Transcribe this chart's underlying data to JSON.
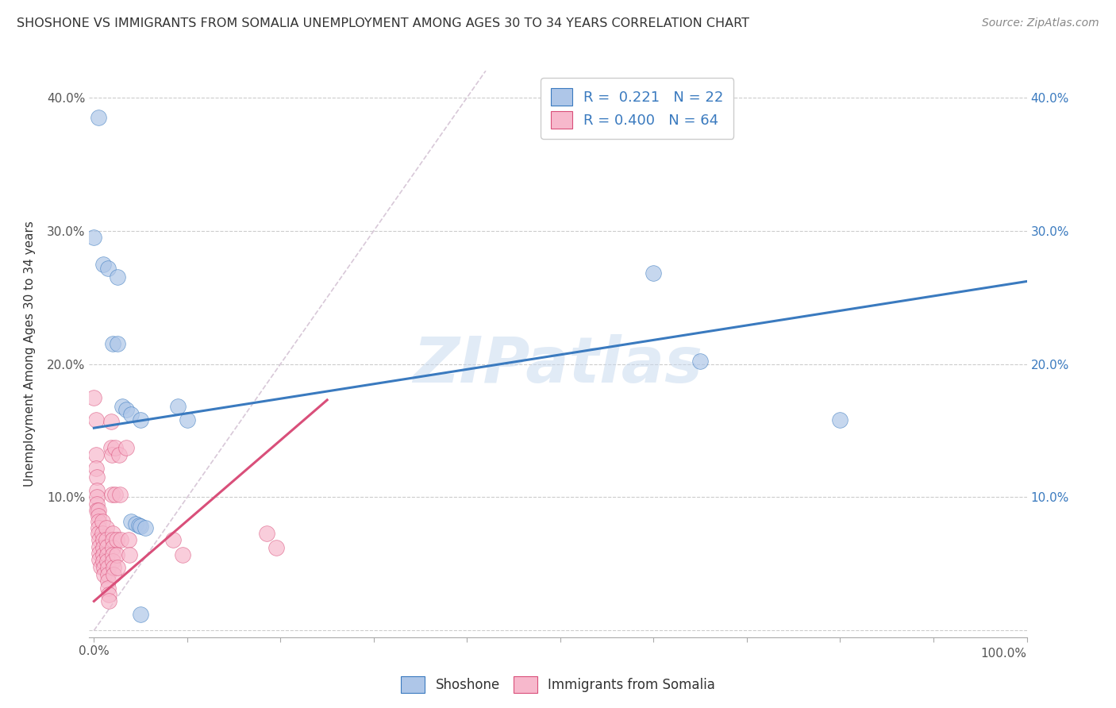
{
  "title": "SHOSHONE VS IMMIGRANTS FROM SOMALIA UNEMPLOYMENT AMONG AGES 30 TO 34 YEARS CORRELATION CHART",
  "source": "Source: ZipAtlas.com",
  "ylabel": "Unemployment Among Ages 30 to 34 years",
  "xlim": [
    -0.005,
    1.0
  ],
  "ylim": [
    -0.005,
    0.42
  ],
  "xticks": [
    0.0,
    0.1,
    0.2,
    0.3,
    0.4,
    0.5,
    0.6,
    0.7,
    0.8,
    0.9,
    1.0
  ],
  "xticklabels_left": [
    "0.0%",
    "",
    "",
    "",
    "",
    "",
    "",
    "",
    "",
    "",
    ""
  ],
  "xticklabels_right": [
    "",
    "",
    "",
    "",
    "",
    "",
    "",
    "",
    "",
    "",
    "100.0%"
  ],
  "yticks": [
    0.0,
    0.1,
    0.2,
    0.3,
    0.4
  ],
  "yticklabels_left": [
    "",
    "10.0%",
    "20.0%",
    "30.0%",
    "40.0%"
  ],
  "yticklabels_right": [
    "",
    "10.0%",
    "20.0%",
    "30.0%",
    "40.0%"
  ],
  "legend_r_blue": "0.221",
  "legend_n_blue": "22",
  "legend_r_pink": "0.400",
  "legend_n_pink": "64",
  "blue_fill_color": "#aec6e8",
  "pink_fill_color": "#f7b8cc",
  "line_blue_color": "#3a7abf",
  "line_pink_color": "#d94f7a",
  "diagonal_color": "#d8c8d8",
  "grid_color": "#cccccc",
  "shoshone_points": [
    [
      0.005,
      0.385
    ],
    [
      0.0,
      0.295
    ],
    [
      0.01,
      0.275
    ],
    [
      0.015,
      0.272
    ],
    [
      0.025,
      0.265
    ],
    [
      0.02,
      0.215
    ],
    [
      0.025,
      0.215
    ],
    [
      0.03,
      0.168
    ],
    [
      0.035,
      0.166
    ],
    [
      0.04,
      0.162
    ],
    [
      0.05,
      0.158
    ],
    [
      0.04,
      0.082
    ],
    [
      0.045,
      0.08
    ],
    [
      0.048,
      0.079
    ],
    [
      0.05,
      0.078
    ],
    [
      0.055,
      0.077
    ],
    [
      0.05,
      0.012
    ],
    [
      0.09,
      0.168
    ],
    [
      0.1,
      0.158
    ],
    [
      0.6,
      0.268
    ],
    [
      0.65,
      0.202
    ],
    [
      0.8,
      0.158
    ]
  ],
  "somalia_points": [
    [
      0.0,
      0.175
    ],
    [
      0.002,
      0.158
    ],
    [
      0.002,
      0.132
    ],
    [
      0.002,
      0.122
    ],
    [
      0.003,
      0.115
    ],
    [
      0.003,
      0.105
    ],
    [
      0.003,
      0.1
    ],
    [
      0.003,
      0.095
    ],
    [
      0.003,
      0.09
    ],
    [
      0.005,
      0.09
    ],
    [
      0.005,
      0.086
    ],
    [
      0.005,
      0.082
    ],
    [
      0.005,
      0.077
    ],
    [
      0.005,
      0.073
    ],
    [
      0.006,
      0.068
    ],
    [
      0.006,
      0.063
    ],
    [
      0.006,
      0.058
    ],
    [
      0.006,
      0.053
    ],
    [
      0.007,
      0.048
    ],
    [
      0.009,
      0.082
    ],
    [
      0.009,
      0.073
    ],
    [
      0.01,
      0.068
    ],
    [
      0.01,
      0.062
    ],
    [
      0.01,
      0.057
    ],
    [
      0.01,
      0.052
    ],
    [
      0.011,
      0.047
    ],
    [
      0.011,
      0.042
    ],
    [
      0.013,
      0.077
    ],
    [
      0.013,
      0.068
    ],
    [
      0.014,
      0.063
    ],
    [
      0.014,
      0.057
    ],
    [
      0.014,
      0.052
    ],
    [
      0.015,
      0.047
    ],
    [
      0.015,
      0.042
    ],
    [
      0.015,
      0.037
    ],
    [
      0.015,
      0.032
    ],
    [
      0.016,
      0.027
    ],
    [
      0.016,
      0.022
    ],
    [
      0.018,
      0.157
    ],
    [
      0.018,
      0.137
    ],
    [
      0.019,
      0.132
    ],
    [
      0.019,
      0.102
    ],
    [
      0.02,
      0.073
    ],
    [
      0.02,
      0.068
    ],
    [
      0.02,
      0.062
    ],
    [
      0.02,
      0.057
    ],
    [
      0.02,
      0.052
    ],
    [
      0.021,
      0.047
    ],
    [
      0.021,
      0.042
    ],
    [
      0.023,
      0.137
    ],
    [
      0.023,
      0.102
    ],
    [
      0.024,
      0.068
    ],
    [
      0.024,
      0.057
    ],
    [
      0.025,
      0.047
    ],
    [
      0.027,
      0.132
    ],
    [
      0.028,
      0.102
    ],
    [
      0.029,
      0.068
    ],
    [
      0.035,
      0.137
    ],
    [
      0.037,
      0.068
    ],
    [
      0.038,
      0.057
    ],
    [
      0.085,
      0.068
    ],
    [
      0.095,
      0.057
    ],
    [
      0.185,
      0.073
    ],
    [
      0.195,
      0.062
    ]
  ],
  "blue_line": {
    "x0": 0.0,
    "y0": 0.152,
    "x1": 1.0,
    "y1": 0.262
  },
  "pink_line": {
    "x0": 0.0,
    "y0": 0.022,
    "x1": 0.25,
    "y1": 0.173
  },
  "diagonal_line": {
    "x0": 0.0,
    "y0": 0.0,
    "x1": 0.42,
    "y1": 0.42
  },
  "watermark": "ZIPatlas",
  "background_color": "#ffffff",
  "title_fontsize": 11.5,
  "axis_label_fontsize": 11,
  "tick_fontsize": 11,
  "source_fontsize": 10,
  "legend_text_color": "#3a7abf",
  "right_tick_color": "#3a7abf",
  "bottom_legend_color": "#333333"
}
